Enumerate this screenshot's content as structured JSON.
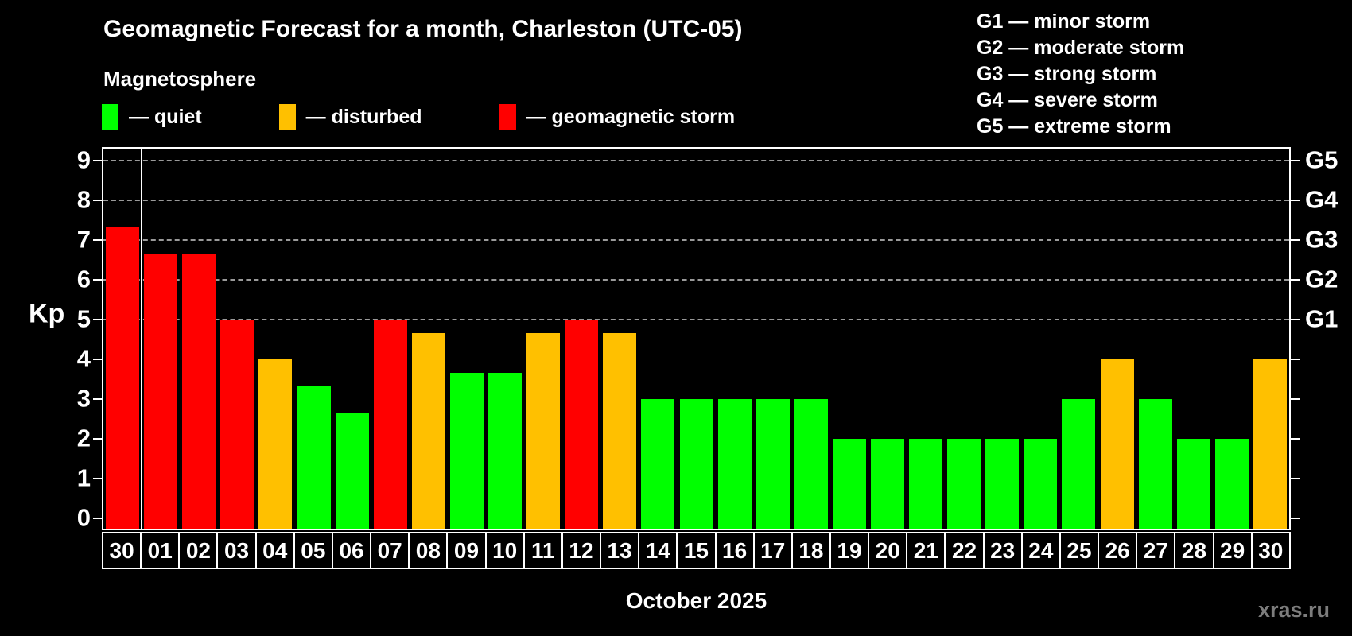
{
  "header": {
    "title": "Geomagnetic Forecast for a month, Charleston (UTC-05)",
    "subtitle": "Magnetosphere"
  },
  "legend": {
    "items": [
      {
        "name": "quiet",
        "label": "— quiet",
        "color": "#00ff00"
      },
      {
        "name": "disturbed",
        "label": "— disturbed",
        "color": "#ffc000"
      },
      {
        "name": "storm",
        "label": "— geomagnetic storm",
        "color": "#ff0000"
      }
    ]
  },
  "storm_scale": {
    "items": [
      "G1 — minor storm",
      "G2 — moderate storm",
      "G3 — strong storm",
      "G4 — severe storm",
      "G5 — extreme storm"
    ]
  },
  "footer": {
    "watermark": "xras.ru"
  },
  "colors": {
    "background": "#000000",
    "axis": "#ffffff",
    "grid": "#9a9a9a",
    "text": "#ffffff",
    "watermark": "#7c7c7c",
    "quiet": "#00ff00",
    "disturbed": "#ffc000",
    "storm": "#ff0000"
  },
  "chart_data": {
    "type": "bar",
    "title": "Geomagnetic Forecast for a month, Charleston (UTC-05)",
    "xlabel": "October 2025",
    "ylabel": "Kp",
    "ylim": [
      0,
      9
    ],
    "yticks": [
      0,
      1,
      2,
      3,
      4,
      5,
      6,
      7,
      8,
      9
    ],
    "grid_levels": [
      5,
      6,
      7,
      8,
      9
    ],
    "right_axis": [
      {
        "level": 5,
        "label": "G1"
      },
      {
        "level": 6,
        "label": "G2"
      },
      {
        "level": 7,
        "label": "G3"
      },
      {
        "level": 8,
        "label": "G4"
      },
      {
        "level": 9,
        "label": "G5"
      }
    ],
    "legend_position": "top",
    "grid": "dashed horizontal at G-storm levels only",
    "month_divider_after_index": 0,
    "categories": [
      "30",
      "01",
      "02",
      "03",
      "04",
      "05",
      "06",
      "07",
      "08",
      "09",
      "10",
      "11",
      "12",
      "13",
      "14",
      "15",
      "16",
      "17",
      "18",
      "19",
      "20",
      "21",
      "22",
      "23",
      "24",
      "25",
      "26",
      "27",
      "28",
      "29",
      "30"
    ],
    "values": [
      7.33,
      6.67,
      6.67,
      5,
      4,
      3.33,
      2.67,
      5,
      4.67,
      3.67,
      3.67,
      4.67,
      5,
      4.67,
      3,
      3,
      3,
      3,
      3,
      2,
      2,
      2,
      2,
      2,
      2,
      3,
      4,
      3,
      2,
      2,
      4
    ],
    "statuses": [
      "storm",
      "storm",
      "storm",
      "storm",
      "disturbed",
      "quiet",
      "quiet",
      "storm",
      "disturbed",
      "quiet",
      "quiet",
      "disturbed",
      "storm",
      "disturbed",
      "quiet",
      "quiet",
      "quiet",
      "quiet",
      "quiet",
      "quiet",
      "quiet",
      "quiet",
      "quiet",
      "quiet",
      "quiet",
      "quiet",
      "disturbed",
      "quiet",
      "quiet",
      "quiet",
      "disturbed"
    ]
  }
}
